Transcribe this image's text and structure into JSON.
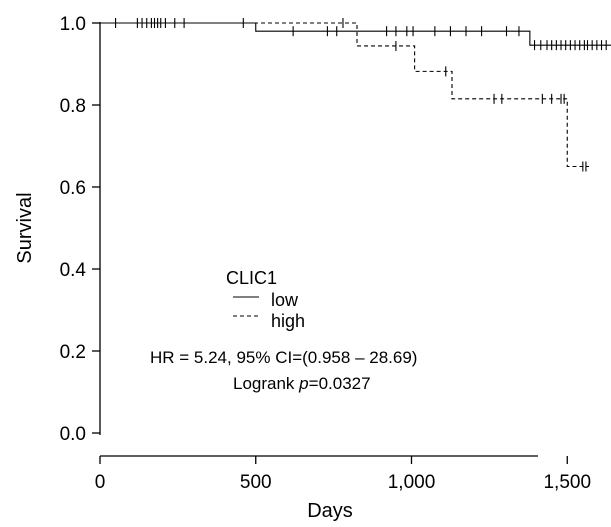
{
  "chart_data": {
    "type": "line",
    "subtype": "kaplan-meier",
    "xlabel": "Days",
    "ylabel": "Survival",
    "xlim": [
      0,
      1750
    ],
    "ylim": [
      0,
      1.05
    ],
    "x_ticks": [
      0,
      500,
      1000,
      1500
    ],
    "x_tick_labels": [
      "0",
      "500",
      "1,000",
      "1,500"
    ],
    "y_ticks": [
      0,
      0.2,
      0.4,
      0.6,
      0.8,
      1.0
    ],
    "y_tick_labels": [
      "0.0",
      "0.2",
      "0.4",
      "0.6",
      "0.8",
      "1.0"
    ],
    "grid": false,
    "legend": {
      "title": "CLIC1",
      "position": "center-left",
      "entries": [
        {
          "label": "low",
          "style": "solid"
        },
        {
          "label": "high",
          "style": "dashed"
        }
      ]
    },
    "series": [
      {
        "name": "low",
        "style": "solid",
        "color": "#000000",
        "steps": [
          [
            0,
            1.0
          ],
          [
            500,
            0.98
          ],
          [
            1380,
            0.946
          ],
          [
            1700,
            0.946
          ]
        ],
        "censored": [
          50,
          120,
          135,
          150,
          165,
          175,
          185,
          195,
          210,
          240,
          270,
          460,
          620,
          730,
          760,
          920,
          950,
          985,
          1005,
          1075,
          1125,
          1175,
          1225,
          1305,
          1345,
          1395,
          1415,
          1435,
          1450,
          1465,
          1480,
          1495,
          1510,
          1525,
          1540,
          1555,
          1565,
          1580,
          1595,
          1610,
          1625,
          1650,
          1675
        ]
      },
      {
        "name": "high",
        "style": "dashed",
        "color": "#000000",
        "steps": [
          [
            0,
            1.0
          ],
          [
            825,
            0.944
          ],
          [
            1010,
            0.882
          ],
          [
            1130,
            0.815
          ],
          [
            1500,
            0.65
          ],
          [
            1570,
            0.65
          ]
        ],
        "censored": [
          780,
          950,
          1110,
          1265,
          1290,
          1420,
          1450,
          1480,
          1490,
          1550,
          1560
        ]
      }
    ],
    "annotations": {
      "hr": "HR = 5.24, 95% CI=(0.958 – 28.69)",
      "logrank_prefix": "Logrank ",
      "logrank_p_symbol": "p",
      "logrank_value": "=0.0327"
    }
  }
}
